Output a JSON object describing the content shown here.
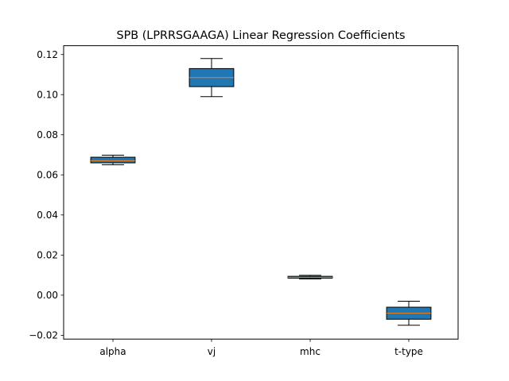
{
  "chart_data": {
    "type": "box",
    "title": "SPB (LPRRSGAAGA) Linear Regression Coefficients",
    "xlabel": "",
    "ylabel": "",
    "categories": [
      "alpha",
      "vj",
      "mhc",
      "t-type"
    ],
    "boxes": [
      {
        "category": "alpha",
        "whisker_low": 0.065,
        "q1": 0.066,
        "median": 0.067,
        "q3": 0.0688,
        "whisker_high": 0.0698
      },
      {
        "category": "vj",
        "whisker_low": 0.099,
        "q1": 0.104,
        "median": 0.1085,
        "q3": 0.113,
        "whisker_high": 0.118
      },
      {
        "category": "mhc",
        "whisker_low": 0.0081,
        "q1": 0.0085,
        "median": 0.0089,
        "q3": 0.0094,
        "whisker_high": 0.0099
      },
      {
        "category": "t-type",
        "whisker_low": -0.015,
        "q1": -0.012,
        "median": -0.009,
        "q3": -0.006,
        "whisker_high": -0.003
      }
    ],
    "yticks": [
      -0.02,
      0.0,
      0.02,
      0.04,
      0.06,
      0.08,
      0.1,
      0.12
    ],
    "ytick_labels": [
      "−0.02",
      "0.00",
      "0.02",
      "0.04",
      "0.06",
      "0.08",
      "0.10",
      "0.12"
    ],
    "ylim": [
      -0.0219,
      0.1244
    ],
    "grid": false,
    "legend": "none",
    "colors": {
      "box_fill": "#1f77b4",
      "median": "#ff7f0e",
      "edge": "#000000"
    }
  }
}
